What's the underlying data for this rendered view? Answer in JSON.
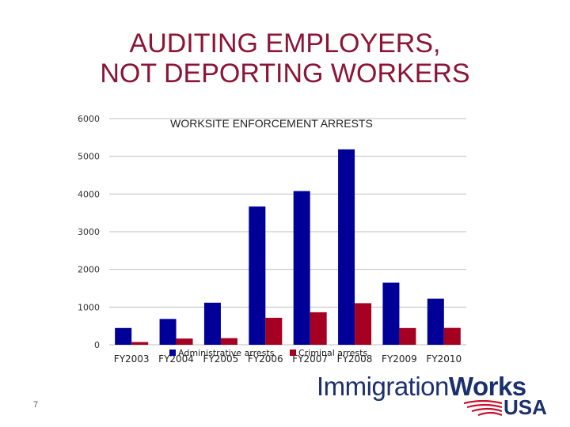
{
  "slide": {
    "title_line1": "AUDITING EMPLOYERS,",
    "title_line2": "NOT DEPORTING WORKERS",
    "page_number": "7"
  },
  "logo": {
    "word1": "Immigration",
    "word2": "Works",
    "word3": "USA",
    "colors": {
      "navy": "#1c2f6e",
      "red": "#c8102e"
    }
  },
  "chart_data": {
    "type": "bar",
    "title": "WORKSITE ENFORCEMENT ARRESTS",
    "categories": [
      "FY2003",
      "FY2004",
      "FY2005",
      "FY2006",
      "FY2007",
      "FY2008",
      "FY2009",
      "FY2010"
    ],
    "series": [
      {
        "name": "Administrative arrests",
        "color": "#000099",
        "values": [
          445,
          685,
          1116,
          3667,
          4077,
          5184,
          1647,
          1224
        ]
      },
      {
        "name": "Criminal arrests",
        "color": "#a50021",
        "values": [
          72,
          165,
          176,
          716,
          863,
          1103,
          444,
          448
        ]
      }
    ],
    "ylim": [
      0,
      6000
    ],
    "yticks": [
      "6000",
      "5000",
      "4000",
      "3000",
      "2000",
      "1000",
      "0"
    ],
    "ytick_values": [
      6000,
      5000,
      4000,
      3000,
      2000,
      1000,
      0
    ],
    "grid": true,
    "legend": "bottom"
  }
}
